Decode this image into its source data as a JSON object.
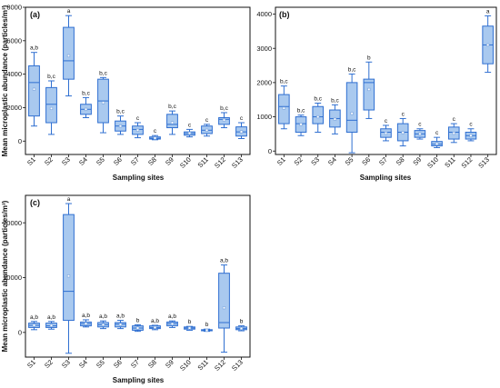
{
  "shared_ylabel": "Mean microplastic abundance (particles/m³)",
  "colors": {
    "box_fill": "#a9c9ef",
    "box_stroke": "#2f6fd1",
    "median": "#2f6fd1",
    "mean_marker": "#7fa8e0"
  },
  "chart_data": [
    {
      "type": "box",
      "panel_label": "(a)",
      "xlabel": "Sampling sites",
      "ylabel": "Mean microplastic abundance (particles/m³)",
      "ylim": [
        -800,
        8000
      ],
      "yticks": [
        0,
        2000,
        4000,
        6000,
        8000
      ],
      "categories": [
        "S1",
        "S2",
        "S3",
        "S4",
        "S5",
        "S6",
        "S7",
        "S8",
        "S9",
        "S10",
        "S11",
        "S12",
        "S13"
      ],
      "significance": [
        "a,b",
        "b,c",
        "a",
        "b,c",
        "b,c",
        "b,c",
        "c",
        "c",
        "b,c",
        "c",
        "c",
        "b,c",
        "c"
      ],
      "boxes": [
        {
          "min": 900,
          "q1": 1500,
          "median": 3500,
          "q3": 4500,
          "max": 5300,
          "mean": 3100
        },
        {
          "min": 400,
          "q1": 1100,
          "median": 2200,
          "q3": 3200,
          "max": 3600,
          "mean": 1950
        },
        {
          "min": 2700,
          "q1": 3700,
          "median": 4800,
          "q3": 6800,
          "max": 7500,
          "mean": 5100
        },
        {
          "min": 1400,
          "q1": 1600,
          "median": 1900,
          "q3": 2200,
          "max": 2600,
          "mean": 1900
        },
        {
          "min": 500,
          "q1": 1100,
          "median": 2400,
          "q3": 3700,
          "max": 3800,
          "mean": 2300
        },
        {
          "min": 400,
          "q1": 600,
          "median": 900,
          "q3": 1200,
          "max": 1500,
          "mean": 900
        },
        {
          "min": 200,
          "q1": 400,
          "median": 700,
          "q3": 900,
          "max": 1100,
          "mean": 650
        },
        {
          "min": 80,
          "q1": 120,
          "median": 170,
          "q3": 250,
          "max": 330,
          "mean": 180
        },
        {
          "min": 400,
          "q1": 800,
          "median": 1000,
          "q3": 1600,
          "max": 1800,
          "mean": 1100
        },
        {
          "min": 250,
          "q1": 350,
          "median": 450,
          "q3": 550,
          "max": 700,
          "mean": 470
        },
        {
          "min": 300,
          "q1": 450,
          "median": 650,
          "q3": 900,
          "max": 1000,
          "mean": 650
        },
        {
          "min": 800,
          "q1": 1000,
          "median": 1300,
          "q3": 1400,
          "max": 1700,
          "mean": 1250
        },
        {
          "min": 150,
          "q1": 300,
          "median": 550,
          "q3": 850,
          "max": 1100,
          "mean": 560
        }
      ]
    },
    {
      "type": "box",
      "panel_label": "(b)",
      "xlabel": "Sampling sites",
      "ylabel": "",
      "ylim": [
        -100,
        4200
      ],
      "yticks": [
        0,
        1000,
        2000,
        3000,
        4000
      ],
      "categories": [
        "S1",
        "S2",
        "S3",
        "S4",
        "S5",
        "S6",
        "S7",
        "S8",
        "S9",
        "S10",
        "S11",
        "S12",
        "S13"
      ],
      "significance": [
        "b,c",
        "b,c",
        "b,c",
        "b,c",
        "b,c",
        "b",
        "c",
        "c",
        "c",
        "c",
        "c",
        "c",
        "a"
      ],
      "boxes": [
        {
          "min": 650,
          "q1": 800,
          "median": 1300,
          "q3": 1650,
          "max": 1900,
          "mean": 1250
        },
        {
          "min": 450,
          "q1": 550,
          "median": 800,
          "q3": 1000,
          "max": 1050,
          "mean": 780
        },
        {
          "min": 550,
          "q1": 800,
          "median": 1000,
          "q3": 1300,
          "max": 1400,
          "mean": 1000
        },
        {
          "min": 500,
          "q1": 700,
          "median": 950,
          "q3": 1200,
          "max": 1350,
          "mean": 930
        },
        {
          "min": -50,
          "q1": 550,
          "median": 900,
          "q3": 2000,
          "max": 2250,
          "mean": 1100
        },
        {
          "min": 950,
          "q1": 1200,
          "median": 2000,
          "q3": 2100,
          "max": 2600,
          "mean": 1800
        },
        {
          "min": 300,
          "q1": 400,
          "median": 550,
          "q3": 650,
          "max": 750,
          "mean": 520
        },
        {
          "min": 150,
          "q1": 300,
          "median": 550,
          "q3": 800,
          "max": 950,
          "mean": 540
        },
        {
          "min": 350,
          "q1": 400,
          "median": 500,
          "q3": 600,
          "max": 650,
          "mean": 500
        },
        {
          "min": 100,
          "q1": 150,
          "median": 200,
          "q3": 280,
          "max": 400,
          "mean": 210
        },
        {
          "min": 250,
          "q1": 350,
          "median": 550,
          "q3": 700,
          "max": 800,
          "mean": 520
        },
        {
          "min": 300,
          "q1": 350,
          "median": 450,
          "q3": 550,
          "max": 650,
          "mean": 450
        },
        {
          "min": 2300,
          "q1": 2550,
          "median": 3100,
          "q3": 3650,
          "max": 3950,
          "mean": 3100
        }
      ]
    },
    {
      "type": "box",
      "panel_label": "(c)",
      "xlabel": "Sampling sites",
      "ylabel": "Mean microplastic abundance (particles/m³)",
      "ylim": [
        -4500,
        25000
      ],
      "yticks": [
        0,
        10000,
        20000
      ],
      "categories": [
        "S1",
        "S2",
        "S3",
        "S4",
        "S5",
        "S6",
        "S7",
        "S8",
        "S9",
        "S10",
        "S11",
        "S12",
        "S13"
      ],
      "significance": [
        "a,b",
        "a,b",
        "a",
        "a,b",
        "a,b",
        "a,b",
        "b",
        "a,b",
        "a,b",
        "b",
        "b",
        "a,b",
        "b"
      ],
      "boxes": [
        {
          "min": 500,
          "q1": 900,
          "median": 1300,
          "q3": 1700,
          "max": 2000,
          "mean": 1300
        },
        {
          "min": 600,
          "q1": 900,
          "median": 1200,
          "q3": 1700,
          "max": 2000,
          "mean": 1250
        },
        {
          "min": -3800,
          "q1": 2200,
          "median": 7500,
          "q3": 21500,
          "max": 23500,
          "mean": 10300
        },
        {
          "min": 1000,
          "q1": 1200,
          "median": 1600,
          "q3": 1900,
          "max": 2300,
          "mean": 1600
        },
        {
          "min": 700,
          "q1": 1000,
          "median": 1400,
          "q3": 1800,
          "max": 2100,
          "mean": 1400
        },
        {
          "min": 700,
          "q1": 1000,
          "median": 1500,
          "q3": 1800,
          "max": 2200,
          "mean": 1450
        },
        {
          "min": 200,
          "q1": 400,
          "median": 800,
          "q3": 1200,
          "max": 1400,
          "mean": 800
        },
        {
          "min": 500,
          "q1": 700,
          "median": 900,
          "q3": 1200,
          "max": 1300,
          "mean": 920
        },
        {
          "min": 900,
          "q1": 1200,
          "median": 1600,
          "q3": 1900,
          "max": 2100,
          "mean": 1550
        },
        {
          "min": 400,
          "q1": 600,
          "median": 800,
          "q3": 1000,
          "max": 1100,
          "mean": 800
        },
        {
          "min": 200,
          "q1": 300,
          "median": 400,
          "q3": 500,
          "max": 600,
          "mean": 400
        },
        {
          "min": -3600,
          "q1": 800,
          "median": 1800,
          "q3": 10800,
          "max": 12300,
          "mean": 4500
        },
        {
          "min": 300,
          "q1": 500,
          "median": 700,
          "q3": 1000,
          "max": 1200,
          "mean": 720
        }
      ]
    }
  ]
}
